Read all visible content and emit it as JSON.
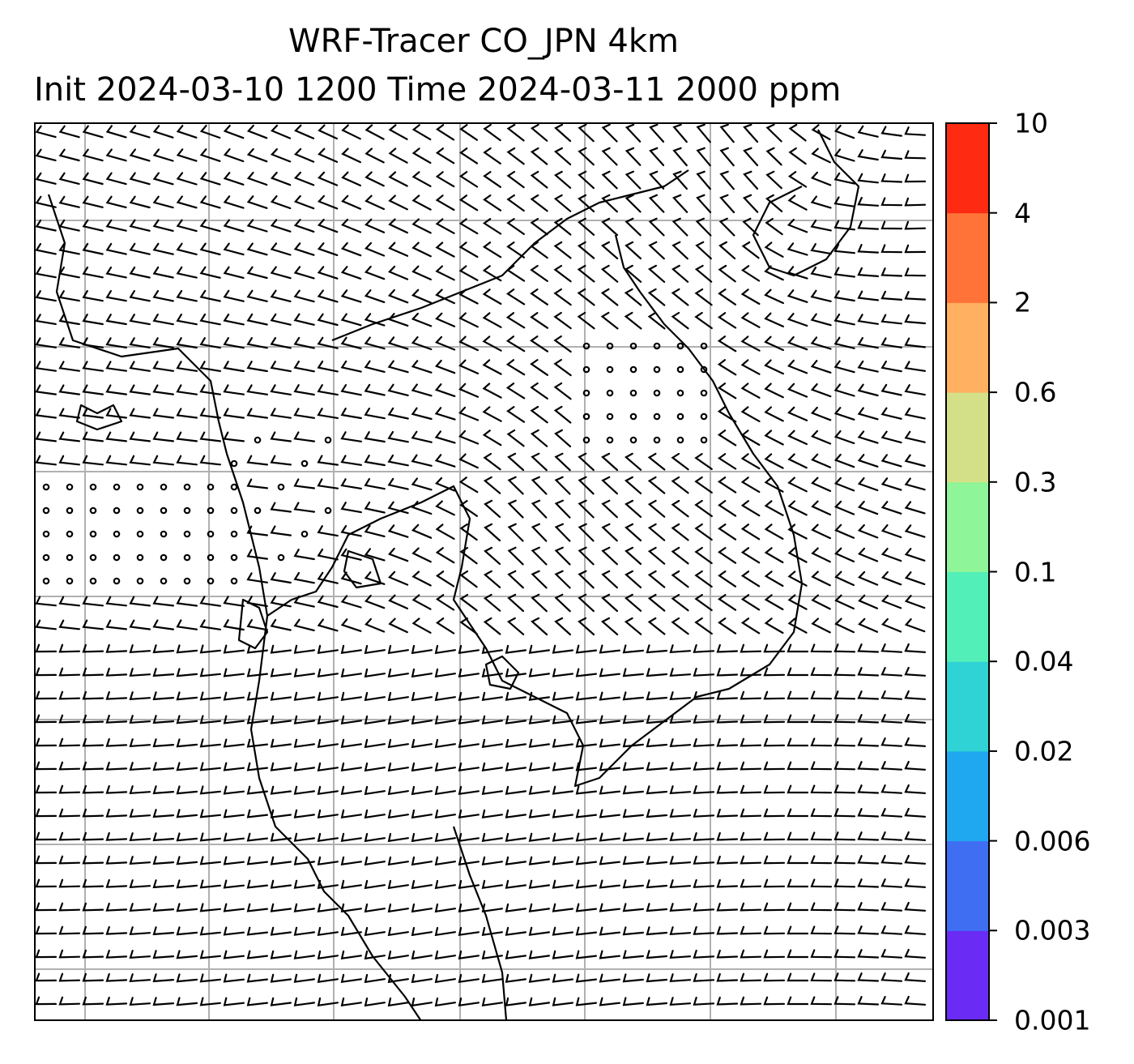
{
  "title": {
    "line1": "WRF-Tracer CO_JPN 4km",
    "line2": "Init 2024-03-10 1200 Time 2024-03-11 2000 ppm"
  },
  "colorbar": {
    "labels": [
      "0.001",
      "0.003",
      "0.006",
      "0.02",
      "0.04",
      "0.1",
      "0.3",
      "0.6",
      "2",
      "4",
      "10"
    ],
    "colors": [
      "#6a2cf5",
      "#3f6ef3",
      "#1fa8f0",
      "#2fd3d5",
      "#52f0b8",
      "#8ef598",
      "#d4e088",
      "#ffb060",
      "#ff7338",
      "#ff2a12"
    ]
  },
  "map": {
    "features": [
      "wind-barbs",
      "coastlines",
      "lat-lon-gridlines"
    ]
  }
}
